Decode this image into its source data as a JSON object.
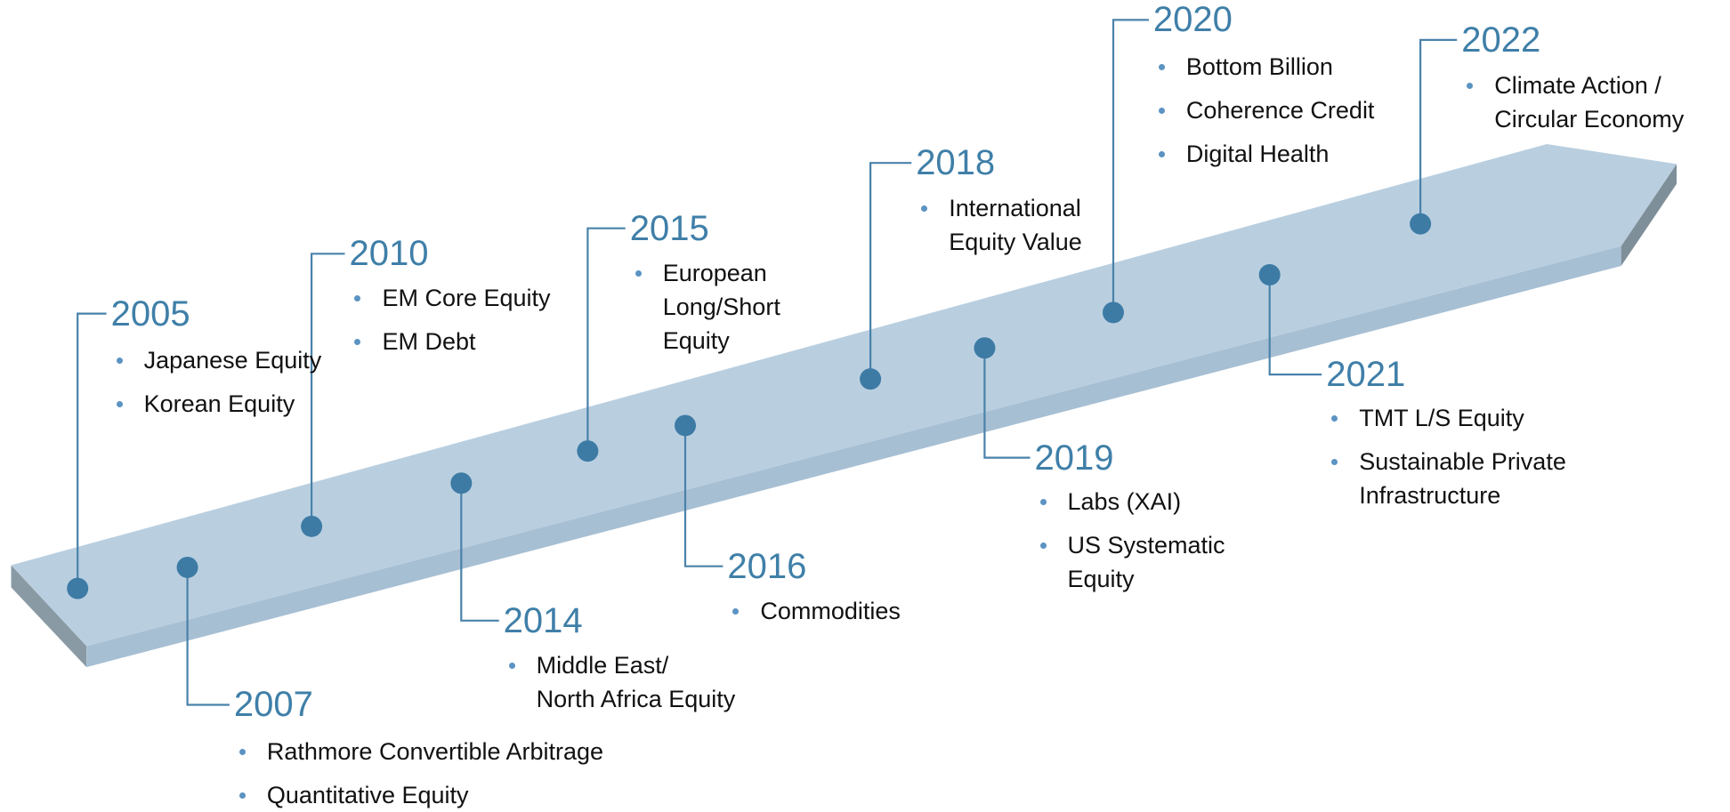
{
  "events": [
    {
      "year": "2005",
      "items": [
        "Japanese Equity",
        "Korean Equity"
      ]
    },
    {
      "year": "2007",
      "items": [
        "Rathmore Convertible Arbitrage",
        "Quantitative Equity"
      ]
    },
    {
      "year": "2010",
      "items": [
        "EM Core Equity",
        "EM Debt"
      ]
    },
    {
      "year": "2014",
      "items": [
        "Middle East/\nNorth Africa Equity"
      ]
    },
    {
      "year": "2015",
      "items": [
        "European\nLong/Short\nEquity"
      ]
    },
    {
      "year": "2016",
      "items": [
        "Commodities"
      ]
    },
    {
      "year": "2018",
      "items": [
        "International\nEquity Value"
      ]
    },
    {
      "year": "2019",
      "items": [
        "Labs (XAI)",
        "US Systematic\nEquity"
      ]
    },
    {
      "year": "2020",
      "items": [
        "Bottom Billion",
        "Coherence Credit",
        "Digital Health"
      ]
    },
    {
      "year": "2021",
      "items": [
        "TMT L/S Equity",
        "Sustainable Private\nInfrastructure"
      ]
    },
    {
      "year": "2022",
      "items": [
        "Climate Action /\nCircular Economy"
      ]
    }
  ]
}
